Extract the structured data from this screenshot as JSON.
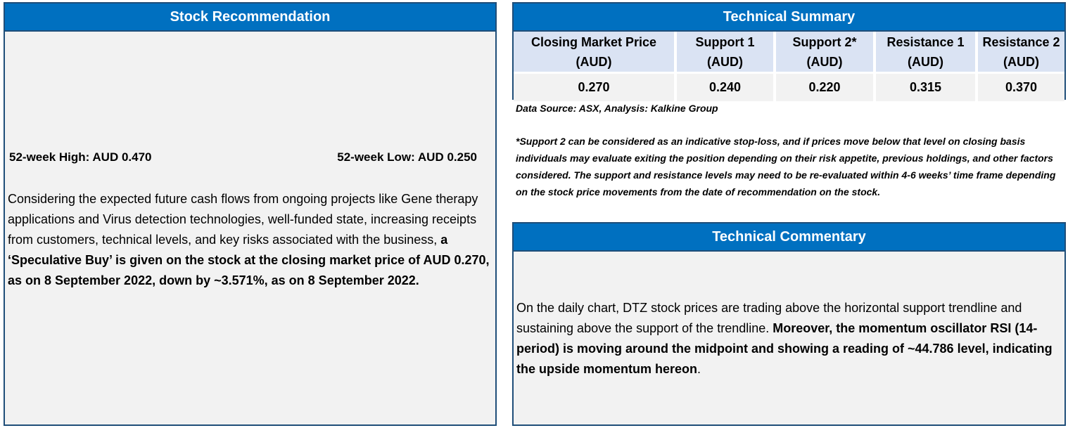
{
  "stock_recommendation": {
    "title": "Stock Recommendation",
    "high_52": "52-week High: AUD 0.470",
    "low_52": "52-week Low: AUD 0.250",
    "body_plain": "Considering the expected future cash flows from ongoing projects like Gene therapy applications and Virus detection technologies, well-funded state, increasing receipts from customers, technical levels, and key risks associated with the business, ",
    "body_bold": "a ‘Speculative Buy’ is given on the stock at the closing market price of AUD 0.270, as on 8 September 2022, down by ~3.571%, as on 8 September 2022."
  },
  "technical_summary": {
    "title": "Technical Summary",
    "columns": [
      {
        "label": "Closing Market Price",
        "unit": "(AUD)",
        "value": "0.270"
      },
      {
        "label": "Support 1",
        "unit": "(AUD)",
        "value": "0.240"
      },
      {
        "label": "Support 2*",
        "unit": "(AUD)",
        "value": "0.220"
      },
      {
        "label": "Resistance 1",
        "unit": "(AUD)",
        "value": "0.315"
      },
      {
        "label": "Resistance 2",
        "unit": "(AUD)",
        "value": "0.370"
      }
    ],
    "source": "Data Source: ASX, Analysis: Kalkine Group",
    "disclaimer": "*Support 2 can be considered as an indicative stop-loss, and if prices move below that level on closing basis individuals may evaluate exiting the position depending on their risk appetite, previous holdings, and other factors considered. The support and resistance levels may need to be re-evaluated within 4-6 weeks’ time frame depending on the stock price movements from the date of recommendation on the stock."
  },
  "technical_commentary": {
    "title": "Technical Commentary",
    "body_plain": "On the daily chart, DTZ stock prices are trading above the horizontal support trendline and sustaining above the support of the trendline. ",
    "body_bold": "Moreover, the momentum oscillator RSI (14-period) is moving around the midpoint and showing a reading of ~44.786 level, indicating the upside momentum hereon",
    "body_end": "."
  }
}
